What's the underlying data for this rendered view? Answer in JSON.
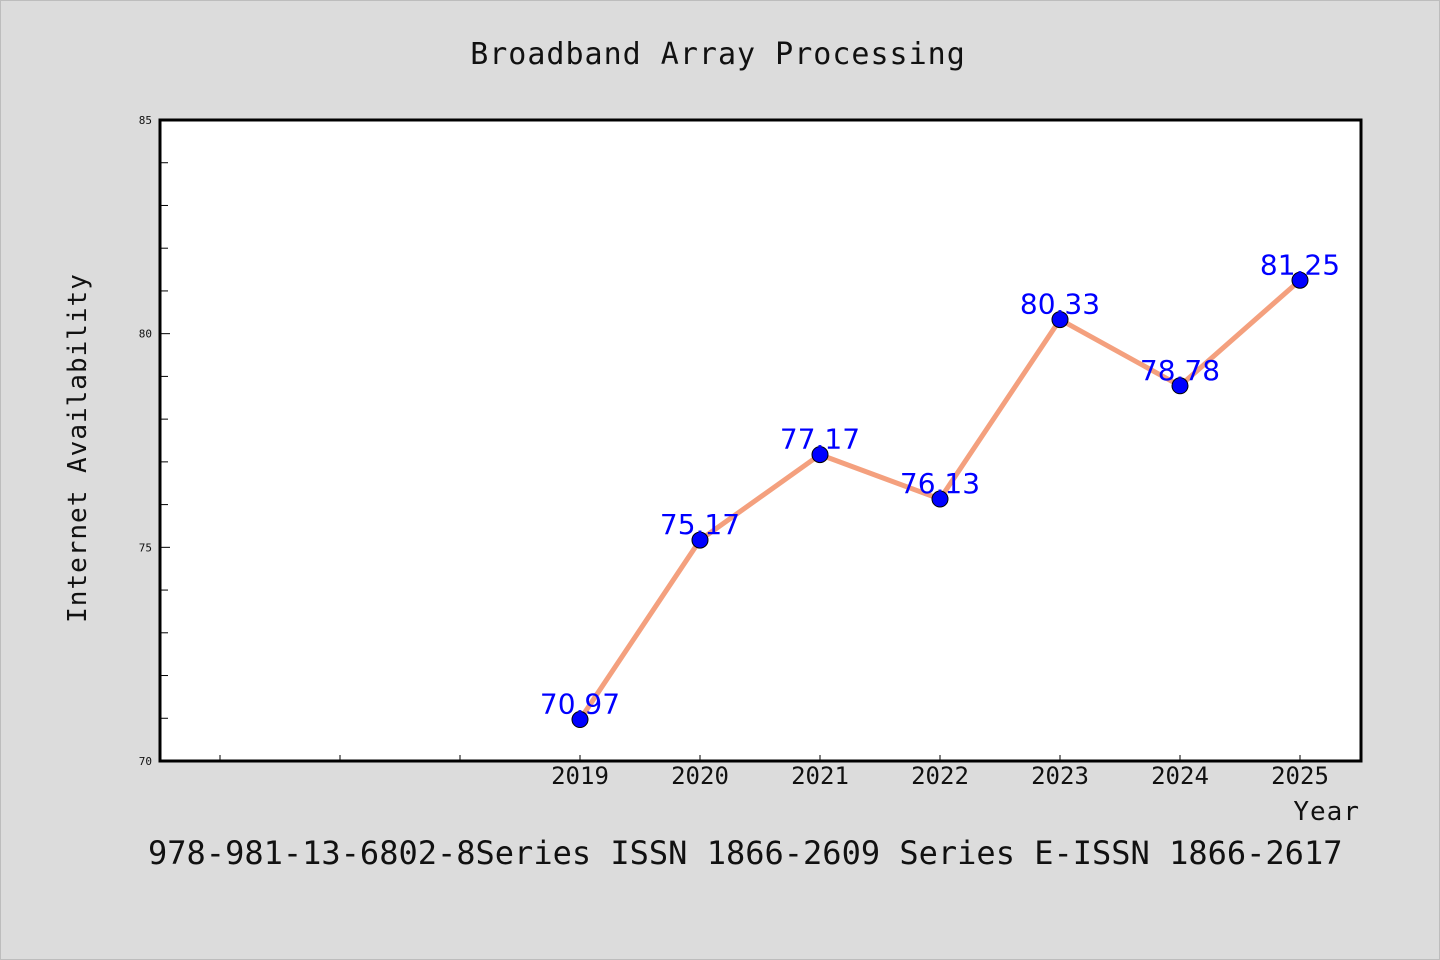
{
  "chart_data": {
    "type": "line",
    "title": "Broadband Array Processing",
    "xlabel": "Year",
    "ylabel": "Internet Availability",
    "x": [
      "2019",
      "2020",
      "2021",
      "2022",
      "2023",
      "2024",
      "2025"
    ],
    "series": [
      {
        "values": [
          70.97,
          75.17,
          77.17,
          76.13,
          80.33,
          78.78,
          81.25
        ]
      }
    ],
    "data_labels": [
      "70.97",
      "75.17",
      "77.17",
      "76.13",
      "80.33",
      "78.78",
      "81.25"
    ],
    "ylim": [
      70,
      85
    ],
    "yticks": [
      "70",
      "75",
      "80",
      "85"
    ],
    "grid": false,
    "legend": "none",
    "colors": {
      "line": "#f4a07e",
      "marker": "#0000ff",
      "label": "#0000ff",
      "background": "#dcdcdc",
      "plot_bg": "#ffffff"
    }
  },
  "footer": {
    "text": "978-981-13-6802-8Series ISSN 1866-2609 Series E-ISSN 1866-2617"
  }
}
